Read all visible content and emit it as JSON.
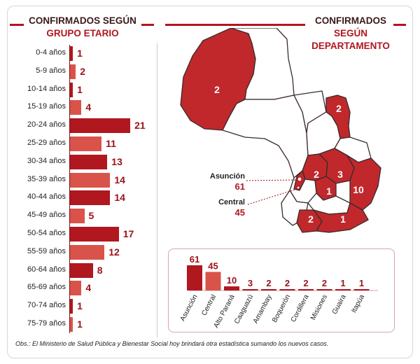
{
  "left_panel": {
    "title": "CONFIRMADOS SEGÚN",
    "subtitle": "GRUPO ETARIO"
  },
  "right_panel": {
    "title": "CONFIRMADOS",
    "subtitle_line1": "SEGÚN",
    "subtitle_line2": "DEPARTAMENTO"
  },
  "colors": {
    "primary": "#b0171f",
    "light": "#d9534a",
    "label_red": "#9c1119",
    "map_fill": "#c0282c",
    "map_empty": "#ffffff"
  },
  "chart_data": [
    {
      "type": "bar",
      "orientation": "horizontal",
      "title": "CONFIRMADOS SEGÚN GRUPO ETARIO",
      "categories": [
        "0-4 años",
        "5-9 años",
        "10-14 años",
        "15-19 años",
        "20-24 años",
        "25-29 años",
        "30-34 años",
        "35-39 años",
        "40-44 años",
        "45-49 años",
        "50-54 años",
        "55-59 años",
        "60-64 años",
        "65-69 años",
        "70-74 años",
        "75-79 años"
      ],
      "values": [
        1,
        2,
        1,
        4,
        21,
        11,
        13,
        14,
        14,
        5,
        17,
        12,
        8,
        4,
        1,
        1
      ]
    },
    {
      "type": "bar",
      "orientation": "vertical",
      "title": "CONFIRMADOS SEGÚN DEPARTAMENTO",
      "categories": [
        "Asunción",
        "Central",
        "Alto Paraná",
        "Caaguazú",
        "Amambay",
        "Boquerón",
        "Cordillera",
        "Misiones",
        "Guaira",
        "Itapúa"
      ],
      "values": [
        61,
        45,
        10,
        3,
        2,
        2,
        2,
        2,
        1,
        1
      ]
    }
  ],
  "map": {
    "callout_asuncion_name": "Asunción",
    "callout_asuncion_value": "61",
    "callout_central_name": "Central",
    "callout_central_value": "45",
    "region_labels": [
      "2",
      "2",
      "2",
      "3",
      "1",
      "10",
      "2",
      "1"
    ]
  },
  "footnote": "Obs.: El Ministerio de Salud Pública y Bienestar Social hoy brindará otra estadística sumando los nuevos casos."
}
